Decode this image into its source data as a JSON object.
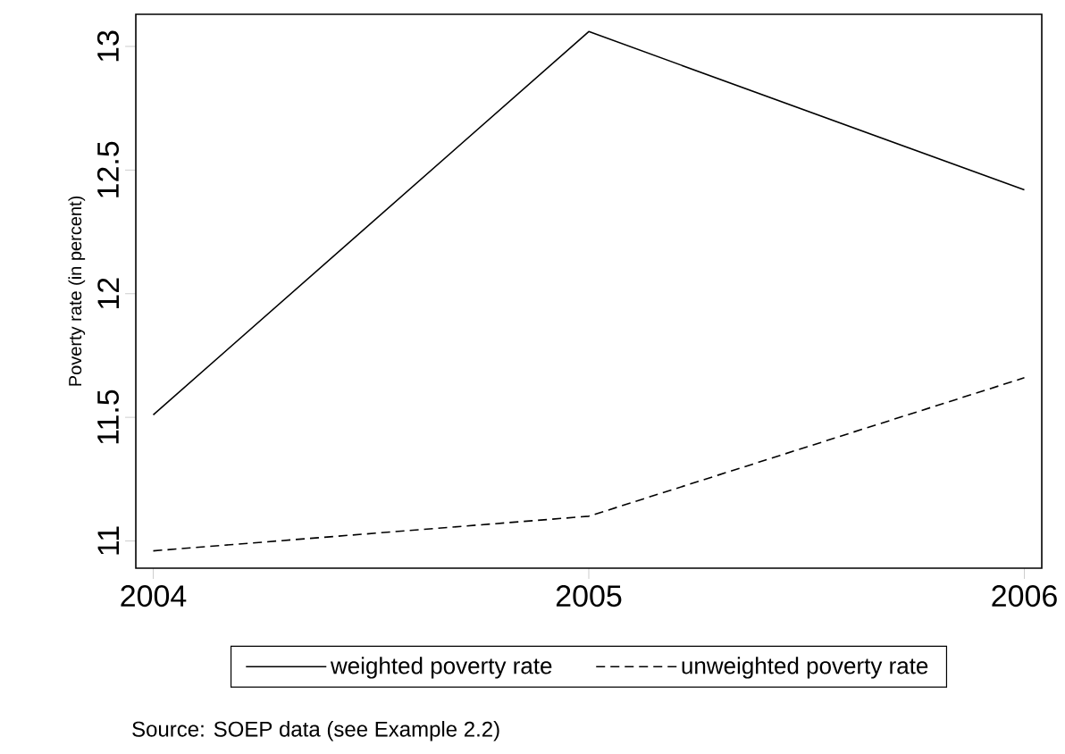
{
  "chart_data": {
    "type": "line",
    "ylabel": "Poverty rate (in percent)",
    "x": [
      2004,
      2005,
      2006
    ],
    "series": [
      {
        "name": "weighted poverty rate",
        "color": "#000000",
        "line_style": "solid",
        "values": [
          11.51,
          13.06,
          12.42
        ]
      },
      {
        "name": "unweighted poverty rate",
        "color": "#000000",
        "line_style": "dashed",
        "values": [
          10.96,
          11.1,
          11.66
        ]
      }
    ],
    "xlim": [
      2003.96,
      2006.04
    ],
    "ylim": [
      10.89,
      13.13
    ],
    "xticks": [
      2004,
      2005,
      2006
    ],
    "yticks": [
      11,
      11.5,
      12,
      12.5,
      13
    ],
    "grid": false,
    "legend": "bottom",
    "marker": "none",
    "annotations": [
      "Source: SOEP data (see Example 2.2)"
    ]
  }
}
